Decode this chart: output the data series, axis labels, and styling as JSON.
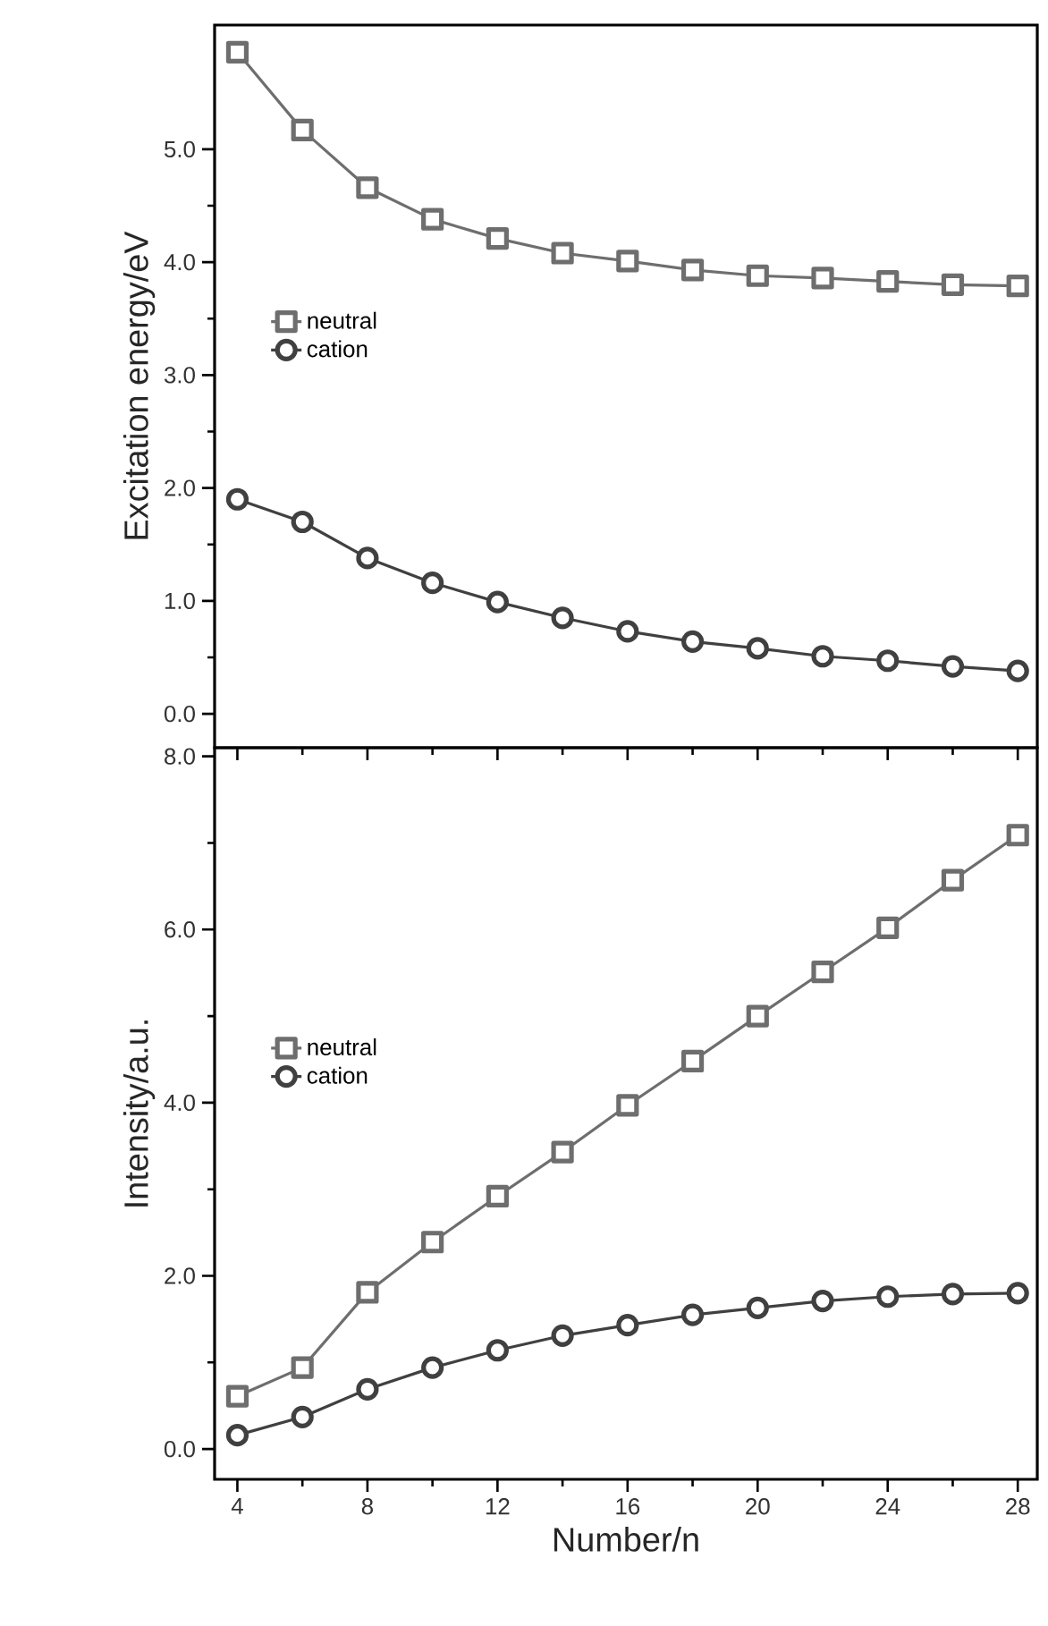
{
  "chart_data": [
    {
      "type": "line",
      "ylabel": "Excitation energy/eV",
      "x": [
        4,
        6,
        8,
        10,
        12,
        14,
        16,
        18,
        20,
        22,
        24,
        26,
        28
      ],
      "series": [
        {
          "name": "neutral",
          "color": "#6e6e6e",
          "marker": "square",
          "values": [
            5.86,
            5.17,
            4.66,
            4.38,
            4.21,
            4.08,
            4.01,
            3.93,
            3.88,
            3.86,
            3.83,
            3.8,
            3.79
          ]
        },
        {
          "name": "cation",
          "color": "#404040",
          "marker": "circle",
          "values": [
            1.9,
            1.7,
            1.38,
            1.16,
            0.99,
            0.85,
            0.73,
            0.64,
            0.58,
            0.51,
            0.47,
            0.42,
            0.38
          ]
        }
      ],
      "xlim": [
        3.3,
        28.6
      ],
      "xticks": [
        {
          "value": 4,
          "label": null
        },
        {
          "value": 8,
          "label": null
        },
        {
          "value": 12,
          "label": null
        },
        {
          "value": 16,
          "label": null
        },
        {
          "value": 20,
          "label": null
        },
        {
          "value": 24,
          "label": null
        },
        {
          "value": 28,
          "label": null
        }
      ],
      "ylim": [
        -0.3,
        6.1
      ],
      "yticks": [
        {
          "value": 0,
          "label": "0.0"
        },
        {
          "value": 1,
          "label": "1.0"
        },
        {
          "value": 2,
          "label": "2.0"
        },
        {
          "value": 3,
          "label": "3.0"
        },
        {
          "value": 4,
          "label": "4.0"
        },
        {
          "value": 5,
          "label": "5.0"
        }
      ],
      "legend": "left",
      "tick_labels": "y",
      "grid": false
    },
    {
      "type": "line",
      "xlabel": "Number/n",
      "ylabel": "Intensity/a.u.",
      "x": [
        4,
        6,
        8,
        10,
        12,
        14,
        16,
        18,
        20,
        22,
        24,
        26,
        28
      ],
      "series": [
        {
          "name": "neutral",
          "color": "#6e6e6e",
          "marker": "square",
          "values": [
            0.61,
            0.94,
            1.81,
            2.39,
            2.92,
            3.43,
            3.97,
            4.48,
            5.0,
            5.51,
            6.02,
            6.57,
            7.09
          ]
        },
        {
          "name": "cation",
          "color": "#404040",
          "marker": "circle",
          "values": [
            0.16,
            0.37,
            0.69,
            0.94,
            1.14,
            1.31,
            1.43,
            1.55,
            1.63,
            1.71,
            1.76,
            1.79,
            1.8
          ]
        }
      ],
      "xlim": [
        3.3,
        28.6
      ],
      "xticks": [
        4,
        8,
        12,
        16,
        20,
        24,
        28
      ],
      "ylim": [
        -0.35,
        8.1
      ],
      "yticks": [
        {
          "value": 0,
          "label": "0.0"
        },
        {
          "value": 2,
          "label": "2.0"
        },
        {
          "value": 4,
          "label": "4.0"
        },
        {
          "value": 6,
          "label": "6.0"
        },
        {
          "value": 8,
          "label": "8.0"
        }
      ],
      "legend": "left",
      "grid": false
    }
  ]
}
